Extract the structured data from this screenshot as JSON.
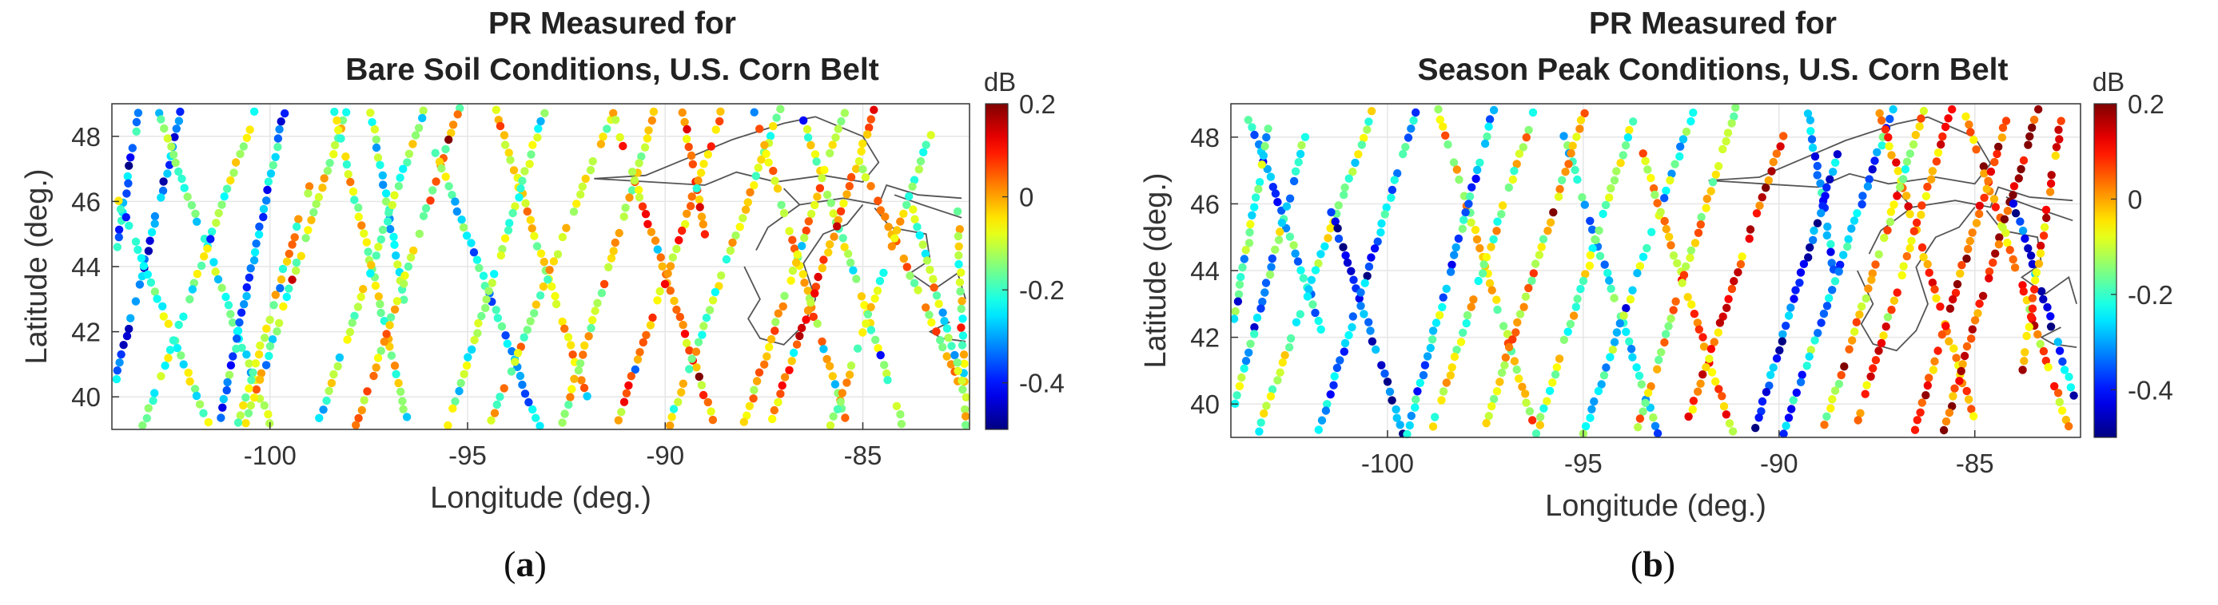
{
  "chart_data": [
    {
      "type": "scatter",
      "panel_label": "a",
      "title": "PR Measured for",
      "subtitle": "Bare Soil Conditions, U.S. Corn Belt",
      "xlabel": "Longitude (deg.)",
      "ylabel": "Latitude (deg.)",
      "xlim": [
        -104,
        -82.3
      ],
      "ylim": [
        39,
        49
      ],
      "xticks": [
        -100,
        -95,
        -90,
        -85
      ],
      "xtick_labels": [
        "-100",
        "-95",
        "-90",
        "-85"
      ],
      "yticks": [
        40,
        42,
        44,
        46,
        48
      ],
      "ytick_labels": [
        "40",
        "42",
        "44",
        "46",
        "48"
      ],
      "grid": true,
      "colorbar": {
        "label": "dB",
        "colormap": "jet",
        "range": [
          -0.5,
          0.2
        ],
        "ticks": [
          0.2,
          0,
          -0.2,
          -0.4
        ],
        "tick_labels": [
          "0.2",
          "0",
          "-0.2",
          "-0.4"
        ]
      },
      "tracks": [
        {
          "start": [
            -103.3,
            49.0
          ],
          "end": [
            -104.0,
            43.5
          ],
          "mean_value": -0.3
        },
        {
          "start": [
            -102.2,
            49.0
          ],
          "end": [
            -104.0,
            40.0
          ],
          "mean_value": -0.35
        },
        {
          "start": [
            -102.9,
            49.0
          ],
          "end": [
            -100.0,
            39.2
          ],
          "mean_value": -0.2
        },
        {
          "start": [
            -104.0,
            46.5
          ],
          "end": [
            -101.5,
            39.0
          ],
          "mean_value": -0.15
        },
        {
          "start": [
            -100.3,
            49.0
          ],
          "end": [
            -103.2,
            39.1
          ],
          "mean_value": -0.15
        },
        {
          "start": [
            -99.6,
            49.0
          ],
          "end": [
            -101.3,
            39.1
          ],
          "mean_value": -0.3
        },
        {
          "start": [
            -98.0,
            49.0
          ],
          "end": [
            -100.6,
            39.2
          ],
          "mean_value": -0.12
        },
        {
          "start": [
            -98.4,
            49.0
          ],
          "end": [
            -96.5,
            39.1
          ],
          "mean_value": -0.1
        },
        {
          "start": [
            -99.0,
            46.5
          ],
          "end": [
            -100.8,
            39.2
          ],
          "mean_value": -0.08
        },
        {
          "start": [
            -97.5,
            49.0
          ],
          "end": [
            -96.6,
            43.0
          ],
          "mean_value": -0.2
        },
        {
          "start": [
            -96.1,
            48.8
          ],
          "end": [
            -98.8,
            39.1
          ],
          "mean_value": -0.15
        },
        {
          "start": [
            -95.2,
            48.9
          ],
          "end": [
            -97.8,
            39.1
          ],
          "mean_value": -0.05
        },
        {
          "start": [
            -94.3,
            48.8
          ],
          "end": [
            -92.0,
            40.0
          ],
          "mean_value": -0.05
        },
        {
          "start": [
            -95.8,
            47.5
          ],
          "end": [
            -93.2,
            39.1
          ],
          "mean_value": -0.25
        },
        {
          "start": [
            -93.0,
            49.0
          ],
          "end": [
            -95.5,
            39.1
          ],
          "mean_value": -0.18
        },
        {
          "start": [
            -91.4,
            48.5
          ],
          "end": [
            -94.5,
            39.0
          ],
          "mean_value": -0.08
        },
        {
          "start": [
            -90.2,
            49.0
          ],
          "end": [
            -92.6,
            39.2
          ],
          "mean_value": -0.05
        },
        {
          "start": [
            -91.4,
            49.0
          ],
          "end": [
            -88.8,
            39.3
          ],
          "mean_value": 0.0
        },
        {
          "start": [
            -89.6,
            49.0
          ],
          "end": [
            -89.0,
            45.0
          ],
          "mean_value": 0.02
        },
        {
          "start": [
            -88.5,
            49.0
          ],
          "end": [
            -91.2,
            39.3
          ],
          "mean_value": 0.0
        },
        {
          "start": [
            -87.1,
            48.8
          ],
          "end": [
            -89.9,
            39.1
          ],
          "mean_value": -0.1
        },
        {
          "start": [
            -87.8,
            49.0
          ],
          "end": [
            -85.4,
            39.1
          ],
          "mean_value": -0.05
        },
        {
          "start": [
            -86.5,
            48.5
          ],
          "end": [
            -84.0,
            39.2
          ],
          "mean_value": -0.15
        },
        {
          "start": [
            -85.4,
            49.0
          ],
          "end": [
            -88.0,
            39.2
          ],
          "mean_value": -0.05
        },
        {
          "start": [
            -84.7,
            48.8
          ],
          "end": [
            -87.3,
            39.3
          ],
          "mean_value": 0.05
        },
        {
          "start": [
            -85.0,
            47.0
          ],
          "end": [
            -82.4,
            40.0
          ],
          "mean_value": -0.05
        },
        {
          "start": [
            -83.3,
            48.0
          ],
          "end": [
            -85.8,
            39.1
          ],
          "mean_value": -0.1
        },
        {
          "start": [
            -82.6,
            46.0
          ],
          "end": [
            -82.4,
            39.1
          ],
          "mean_value": -0.12
        },
        {
          "start": [
            -83.8,
            46.0
          ],
          "end": [
            -82.5,
            40.5
          ],
          "mean_value": -0.2
        }
      ]
    },
    {
      "type": "scatter",
      "panel_label": "b",
      "title": "PR Measured for",
      "subtitle": "Season Peak Conditions, U.S. Corn Belt",
      "xlabel": "Longitude (deg.)",
      "ylabel": "Latitude (deg.)",
      "xlim": [
        -104,
        -82.3
      ],
      "ylim": [
        39,
        49
      ],
      "xticks": [
        -100,
        -95,
        -90,
        -85
      ],
      "xtick_labels": [
        "-100",
        "-95",
        "-90",
        "-85"
      ],
      "yticks": [
        40,
        42,
        44,
        46,
        48
      ],
      "ytick_labels": [
        "40",
        "42",
        "44",
        "46",
        "48"
      ],
      "grid": true,
      "colorbar": {
        "label": "dB",
        "colormap": "jet",
        "range": [
          -0.5,
          0.2
        ],
        "ticks": [
          0.2,
          0,
          -0.2,
          -0.4
        ],
        "tick_labels": [
          "0.2",
          "0",
          "-0.2",
          "-0.4"
        ]
      },
      "tracks": [
        {
          "start": [
            -103.6,
            48.8
          ],
          "end": [
            -101.6,
            42.0
          ],
          "mean_value": -0.3
        },
        {
          "start": [
            -103.0,
            48.5
          ],
          "end": [
            -104.0,
            42.0
          ],
          "mean_value": -0.2
        },
        {
          "start": [
            -102.0,
            48.5
          ],
          "end": [
            -104.0,
            39.5
          ],
          "mean_value": -0.25
        },
        {
          "start": [
            -100.3,
            49.0
          ],
          "end": [
            -103.3,
            39.2
          ],
          "mean_value": -0.15
        },
        {
          "start": [
            -101.5,
            46.0
          ],
          "end": [
            -99.6,
            39.1
          ],
          "mean_value": -0.4
        },
        {
          "start": [
            -99.2,
            49.0
          ],
          "end": [
            -101.8,
            39.0
          ],
          "mean_value": -0.3
        },
        {
          "start": [
            -98.7,
            48.8
          ],
          "end": [
            -96.3,
            39.5
          ],
          "mean_value": -0.05
        },
        {
          "start": [
            -97.3,
            48.8
          ],
          "end": [
            -99.5,
            39.1
          ],
          "mean_value": -0.3
        },
        {
          "start": [
            -96.2,
            49.0
          ],
          "end": [
            -98.9,
            39.1
          ],
          "mean_value": -0.1
        },
        {
          "start": [
            -95.5,
            48.0
          ],
          "end": [
            -93.1,
            39.1
          ],
          "mean_value": -0.25
        },
        {
          "start": [
            -94.9,
            49.0
          ],
          "end": [
            -97.5,
            39.4
          ],
          "mean_value": -0.05
        },
        {
          "start": [
            -93.6,
            49.0
          ],
          "end": [
            -96.2,
            39.1
          ],
          "mean_value": -0.12
        },
        {
          "start": [
            -92.2,
            48.7
          ],
          "end": [
            -95.0,
            39.1
          ],
          "mean_value": -0.2
        },
        {
          "start": [
            -93.5,
            47.5
          ],
          "end": [
            -91.2,
            39.2
          ],
          "mean_value": 0.0
        },
        {
          "start": [
            -91.1,
            48.9
          ],
          "end": [
            -93.6,
            39.3
          ],
          "mean_value": -0.05
        },
        {
          "start": [
            -89.9,
            48.0
          ],
          "end": [
            -92.3,
            39.6
          ],
          "mean_value": 0.05
        },
        {
          "start": [
            -89.3,
            49.0
          ],
          "end": [
            -88.6,
            44.0
          ],
          "mean_value": -0.3
        },
        {
          "start": [
            -88.5,
            47.5
          ],
          "end": [
            -90.6,
            39.3
          ],
          "mean_value": -0.38
        },
        {
          "start": [
            -87.1,
            48.8
          ],
          "end": [
            -89.9,
            39.1
          ],
          "mean_value": -0.3
        },
        {
          "start": [
            -87.5,
            49.0
          ],
          "end": [
            -84.9,
            39.1
          ],
          "mean_value": 0.02
        },
        {
          "start": [
            -86.3,
            48.8
          ],
          "end": [
            -88.9,
            39.1
          ],
          "mean_value": -0.05
        },
        {
          "start": [
            -85.6,
            48.8
          ],
          "end": [
            -88.0,
            39.5
          ],
          "mean_value": 0.05
        },
        {
          "start": [
            -85.3,
            48.9
          ],
          "end": [
            -82.6,
            39.3
          ],
          "mean_value": 0.0
        },
        {
          "start": [
            -84.2,
            48.5
          ],
          "end": [
            -86.6,
            39.0
          ],
          "mean_value": 0.08
        },
        {
          "start": [
            -83.4,
            48.8
          ],
          "end": [
            -85.8,
            39.2
          ],
          "mean_value": 0.1
        },
        {
          "start": [
            -84.0,
            46.0
          ],
          "end": [
            -82.4,
            40.0
          ],
          "mean_value": -0.35
        },
        {
          "start": [
            -82.8,
            48.5
          ],
          "end": [
            -83.8,
            41.0
          ],
          "mean_value": 0.05
        }
      ]
    }
  ]
}
